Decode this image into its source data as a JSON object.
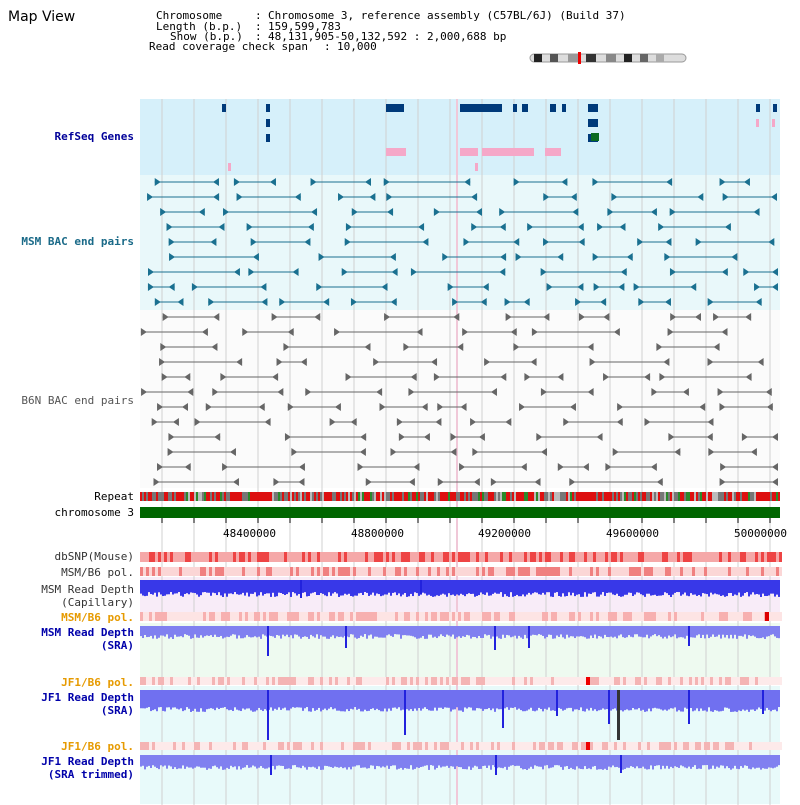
{
  "title": "Map View",
  "header": {
    "chromosome_label": "Chromosome",
    "chromosome_value": "Chromosome 3, reference assembly (C57BL/6J) (Build 37)",
    "length_label": "Length (b.p.)",
    "length_value": "159,599,783",
    "show_label": "Show (b.p.)",
    "show_value": "48,131,905-50,132,592 : 2,000,688 bp",
    "coverage_label": "Read coverage check span",
    "coverage_value": "10,000"
  },
  "tracks": {
    "refseq": "RefSeq Genes",
    "msm_bac": "MSM BAC end pairs",
    "b6n_bac": "B6N BAC end pairs",
    "repeat": "Repeat",
    "chromosome": "chromosome 3",
    "dbsnp": "dbSNP(Mouse)",
    "msm_b6_pol_1": "MSM/B6 pol.",
    "msm_depth_cap_1": "MSM Read Depth",
    "msm_depth_cap_2": "(Capillary)",
    "msm_b6_pol_2": "MSM/B6 pol.",
    "msm_depth_sra_1": "MSM Read Depth",
    "msm_depth_sra_2": "(SRA)",
    "jf1_b6_pol_1": "JF1/B6 pol.",
    "jf1_depth_sra_1": "JF1 Read Depth",
    "jf1_depth_sra_2": "(SRA)",
    "jf1_b6_pol_2": "JF1/B6 pol.",
    "jf1_depth_trim_1": "JF1 Read Depth",
    "jf1_depth_trim_2": "(SRA trimmed)"
  },
  "axis_ticks": [
    "48400000",
    "48800000",
    "49200000",
    "49600000",
    "50000000"
  ],
  "colors": {
    "refseq_bg": "#d6f0fa",
    "gene": "#003a7a",
    "refseq_label": "#000099",
    "msm_bac": "#1a7090",
    "msm_bac_label": "#1a6a88",
    "b6n_bac": "#666666",
    "b6n_label": "#555555",
    "chromosome_bar": "#006600",
    "depth_blue": "#3333ee",
    "pol_label": "#e69a00",
    "depth_label": "#0000aa"
  }
}
